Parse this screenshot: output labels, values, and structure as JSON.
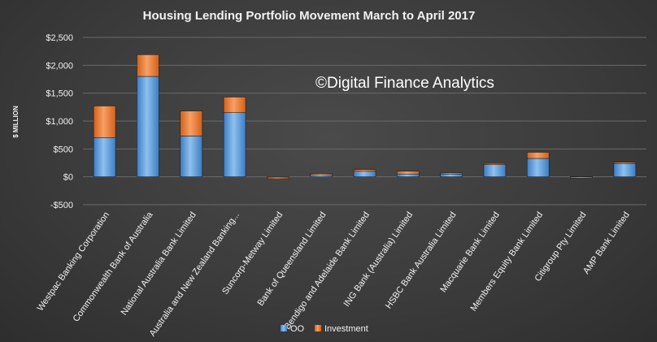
{
  "chart_data": {
    "type": "bar",
    "stacked": true,
    "title": "Housing Lending Portfolio Movement March to April 2017",
    "ylabel": "$ MILLION",
    "xlabel": "",
    "ylim": [
      -500,
      2500
    ],
    "yticks": [
      -500,
      0,
      500,
      1000,
      1500,
      2000,
      2500
    ],
    "ytick_labels": [
      "-$500",
      "$0",
      "$500",
      "$1,000",
      "$1,500",
      "$2,000",
      "$2,500"
    ],
    "grid": true,
    "legend_position": "bottom",
    "watermark": "©Digital Finance Analytics",
    "categories": [
      "Westpac Banking Corporation",
      "Commonwealth Bank of Australia",
      "National Australia Bank Limited",
      "Australia and New Zealand Banking...",
      "Suncorp-Metway Limited",
      "Bank of Queensland Limited",
      "Bendigo and Adelaide Bank Limited",
      "ING Bank (Australia) Limited",
      "HSBC Bank Australia Limited",
      "Macquarie Bank Limited",
      "Members Equity Bank Limited",
      "Citigroup Pty Limited",
      "AMP Bank Limited"
    ],
    "series": [
      {
        "name": "OO",
        "color": "#5b9bd5",
        "values": [
          700,
          1800,
          730,
          1150,
          -20,
          50,
          100,
          50,
          55,
          220,
          330,
          5,
          250
        ]
      },
      {
        "name": "Investment",
        "color": "#ed7d31",
        "values": [
          570,
          390,
          450,
          280,
          -15,
          10,
          30,
          50,
          15,
          20,
          110,
          -10,
          10
        ]
      }
    ]
  }
}
